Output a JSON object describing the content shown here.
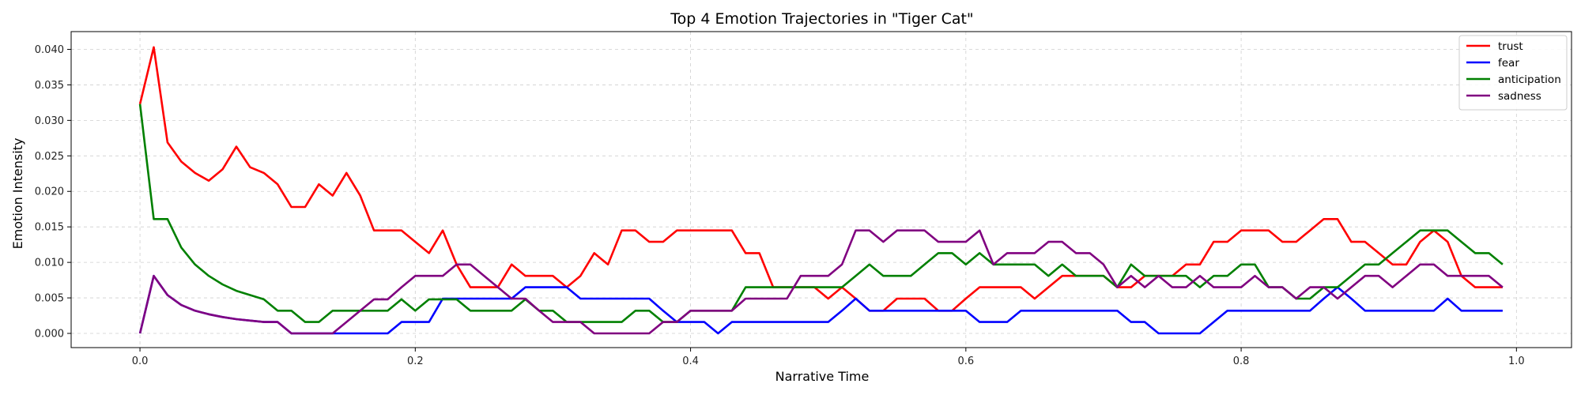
{
  "chart_data": {
    "type": "line",
    "title": "Top 4 Emotion Trajectories in \"Tiger Cat\"",
    "xlabel": "Narrative Time",
    "ylabel": "Emotion Intensity",
    "xlim": [
      -0.05,
      1.04
    ],
    "ylim": [
      -0.002,
      0.0425
    ],
    "xticks": [
      0.0,
      0.2,
      0.4,
      0.6,
      0.8,
      1.0
    ],
    "xtick_labels": [
      "0.0",
      "0.2",
      "0.4",
      "0.6",
      "0.8",
      "1.0"
    ],
    "yticks": [
      0.0,
      0.005,
      0.01,
      0.015,
      0.02,
      0.025,
      0.03,
      0.035,
      0.04
    ],
    "ytick_labels": [
      "0.000",
      "0.005",
      "0.010",
      "0.015",
      "0.020",
      "0.025",
      "0.030",
      "0.035",
      "0.040"
    ],
    "grid": true,
    "legend_position": "top-right",
    "x": [
      0.0,
      0.01,
      0.02,
      0.03,
      0.04,
      0.05,
      0.06,
      0.07,
      0.08,
      0.09,
      0.1,
      0.11,
      0.12,
      0.13,
      0.14,
      0.15,
      0.16,
      0.17,
      0.18,
      0.19,
      0.2,
      0.21,
      0.22,
      0.23,
      0.24,
      0.25,
      0.26,
      0.27,
      0.28,
      0.29,
      0.3,
      0.31,
      0.32,
      0.33,
      0.34,
      0.35,
      0.36,
      0.37,
      0.38,
      0.39,
      0.4,
      0.41,
      0.42,
      0.43,
      0.44,
      0.45,
      0.46,
      0.47,
      0.48,
      0.49,
      0.5,
      0.51,
      0.52,
      0.53,
      0.54,
      0.55,
      0.56,
      0.57,
      0.58,
      0.59,
      0.6,
      0.61,
      0.62,
      0.63,
      0.64,
      0.65,
      0.66,
      0.67,
      0.68,
      0.69,
      0.7,
      0.71,
      0.72,
      0.73,
      0.74,
      0.75,
      0.76,
      0.77,
      0.78,
      0.79,
      0.8,
      0.81,
      0.82,
      0.83,
      0.84,
      0.85,
      0.86,
      0.87,
      0.88,
      0.89,
      0.9,
      0.91,
      0.92,
      0.93,
      0.94,
      0.95,
      0.96,
      0.97,
      0.98,
      0.99
    ],
    "series": [
      {
        "name": "trust",
        "color": "#ff0000",
        "values": [
          0.0323,
          0.0403,
          0.0269,
          0.0242,
          0.0226,
          0.0215,
          0.0231,
          0.0263,
          0.0234,
          0.0226,
          0.021,
          0.0178,
          0.0178,
          0.021,
          0.0194,
          0.0226,
          0.0194,
          0.0145,
          0.0145,
          0.0145,
          0.0129,
          0.0113,
          0.0145,
          0.0097,
          0.0065,
          0.0065,
          0.0065,
          0.0097,
          0.0081,
          0.0081,
          0.0081,
          0.0065,
          0.0081,
          0.0113,
          0.0097,
          0.0145,
          0.0145,
          0.0129,
          0.0129,
          0.0145,
          0.0145,
          0.0145,
          0.0145,
          0.0145,
          0.0113,
          0.0113,
          0.0065,
          0.0065,
          0.0065,
          0.0065,
          0.0049,
          0.0065,
          0.0049,
          0.0032,
          0.0032,
          0.0049,
          0.0049,
          0.0049,
          0.0032,
          0.0032,
          0.0049,
          0.0065,
          0.0065,
          0.0065,
          0.0065,
          0.0049,
          0.0065,
          0.0081,
          0.0081,
          0.0081,
          0.0081,
          0.0065,
          0.0065,
          0.0081,
          0.0081,
          0.0081,
          0.0097,
          0.0097,
          0.0129,
          0.0129,
          0.0145,
          0.0145,
          0.0145,
          0.0129,
          0.0129,
          0.0145,
          0.0161,
          0.0161,
          0.0129,
          0.0129,
          0.0113,
          0.0097,
          0.0097,
          0.0129,
          0.0145,
          0.0129,
          0.0081,
          0.0065,
          0.0065,
          0.0065
        ]
      },
      {
        "name": "fear",
        "color": "#0000ff",
        "values": [
          0.0,
          0.0081,
          0.0054,
          0.004,
          0.0032,
          0.0027,
          0.0023,
          0.002,
          0.0018,
          0.0016,
          0.0016,
          0.0,
          0.0,
          0.0,
          0.0,
          0.0,
          0.0,
          0.0,
          0.0,
          0.0016,
          0.0016,
          0.0016,
          0.0049,
          0.0049,
          0.0049,
          0.0049,
          0.0049,
          0.0049,
          0.0065,
          0.0065,
          0.0065,
          0.0065,
          0.0049,
          0.0049,
          0.0049,
          0.0049,
          0.0049,
          0.0049,
          0.0032,
          0.0016,
          0.0016,
          0.0016,
          0.0,
          0.0016,
          0.0016,
          0.0016,
          0.0016,
          0.0016,
          0.0016,
          0.0016,
          0.0016,
          0.0032,
          0.0049,
          0.0032,
          0.0032,
          0.0032,
          0.0032,
          0.0032,
          0.0032,
          0.0032,
          0.0032,
          0.0016,
          0.0016,
          0.0016,
          0.0032,
          0.0032,
          0.0032,
          0.0032,
          0.0032,
          0.0032,
          0.0032,
          0.0032,
          0.0016,
          0.0016,
          0.0,
          0.0,
          0.0,
          0.0,
          0.0016,
          0.0032,
          0.0032,
          0.0032,
          0.0032,
          0.0032,
          0.0032,
          0.0032,
          0.0049,
          0.0065,
          0.0049,
          0.0032,
          0.0032,
          0.0032,
          0.0032,
          0.0032,
          0.0032,
          0.0049,
          0.0032,
          0.0032,
          0.0032,
          0.0032
        ]
      },
      {
        "name": "anticipation",
        "color": "#008000",
        "values": [
          0.0323,
          0.0161,
          0.0161,
          0.0121,
          0.0097,
          0.0081,
          0.0069,
          0.006,
          0.0054,
          0.0048,
          0.0032,
          0.0032,
          0.0016,
          0.0016,
          0.0032,
          0.0032,
          0.0032,
          0.0032,
          0.0032,
          0.0048,
          0.0032,
          0.0048,
          0.0048,
          0.0048,
          0.0032,
          0.0032,
          0.0032,
          0.0032,
          0.0048,
          0.0032,
          0.0032,
          0.0016,
          0.0016,
          0.0016,
          0.0016,
          0.0016,
          0.0032,
          0.0032,
          0.0016,
          0.0016,
          0.0032,
          0.0032,
          0.0032,
          0.0032,
          0.0065,
          0.0065,
          0.0065,
          0.0065,
          0.0065,
          0.0065,
          0.0065,
          0.0065,
          0.0081,
          0.0097,
          0.0081,
          0.0081,
          0.0081,
          0.0097,
          0.0113,
          0.0113,
          0.0097,
          0.0113,
          0.0097,
          0.0097,
          0.0097,
          0.0097,
          0.0081,
          0.0097,
          0.0081,
          0.0081,
          0.0081,
          0.0065,
          0.0097,
          0.0081,
          0.0081,
          0.0081,
          0.0081,
          0.0065,
          0.0081,
          0.0081,
          0.0097,
          0.0097,
          0.0065,
          0.0065,
          0.0049,
          0.0049,
          0.0065,
          0.0065,
          0.0081,
          0.0097,
          0.0097,
          0.0113,
          0.0129,
          0.0145,
          0.0145,
          0.0145,
          0.0129,
          0.0113,
          0.0113,
          0.0097
        ]
      },
      {
        "name": "sadness",
        "color": "#800080",
        "values": [
          0.0,
          0.0081,
          0.0054,
          0.004,
          0.0032,
          0.0027,
          0.0023,
          0.002,
          0.0018,
          0.0016,
          0.0016,
          0.0,
          0.0,
          0.0,
          0.0,
          0.0016,
          0.0032,
          0.0048,
          0.0048,
          0.0065,
          0.0081,
          0.0081,
          0.0081,
          0.0097,
          0.0097,
          0.0081,
          0.0065,
          0.0049,
          0.0049,
          0.0032,
          0.0016,
          0.0016,
          0.0016,
          0.0,
          0.0,
          0.0,
          0.0,
          0.0,
          0.0016,
          0.0016,
          0.0032,
          0.0032,
          0.0032,
          0.0032,
          0.0049,
          0.0049,
          0.0049,
          0.0049,
          0.0081,
          0.0081,
          0.0081,
          0.0097,
          0.0145,
          0.0145,
          0.0129,
          0.0145,
          0.0145,
          0.0145,
          0.0129,
          0.0129,
          0.0129,
          0.0145,
          0.0097,
          0.0113,
          0.0113,
          0.0113,
          0.0129,
          0.0129,
          0.0113,
          0.0113,
          0.0097,
          0.0065,
          0.0081,
          0.0065,
          0.0081,
          0.0065,
          0.0065,
          0.0081,
          0.0065,
          0.0065,
          0.0065,
          0.0081,
          0.0065,
          0.0065,
          0.0049,
          0.0065,
          0.0065,
          0.0049,
          0.0065,
          0.0081,
          0.0081,
          0.0065,
          0.0081,
          0.0097,
          0.0097,
          0.0081,
          0.0081,
          0.0081,
          0.0081,
          0.0065
        ]
      }
    ]
  }
}
